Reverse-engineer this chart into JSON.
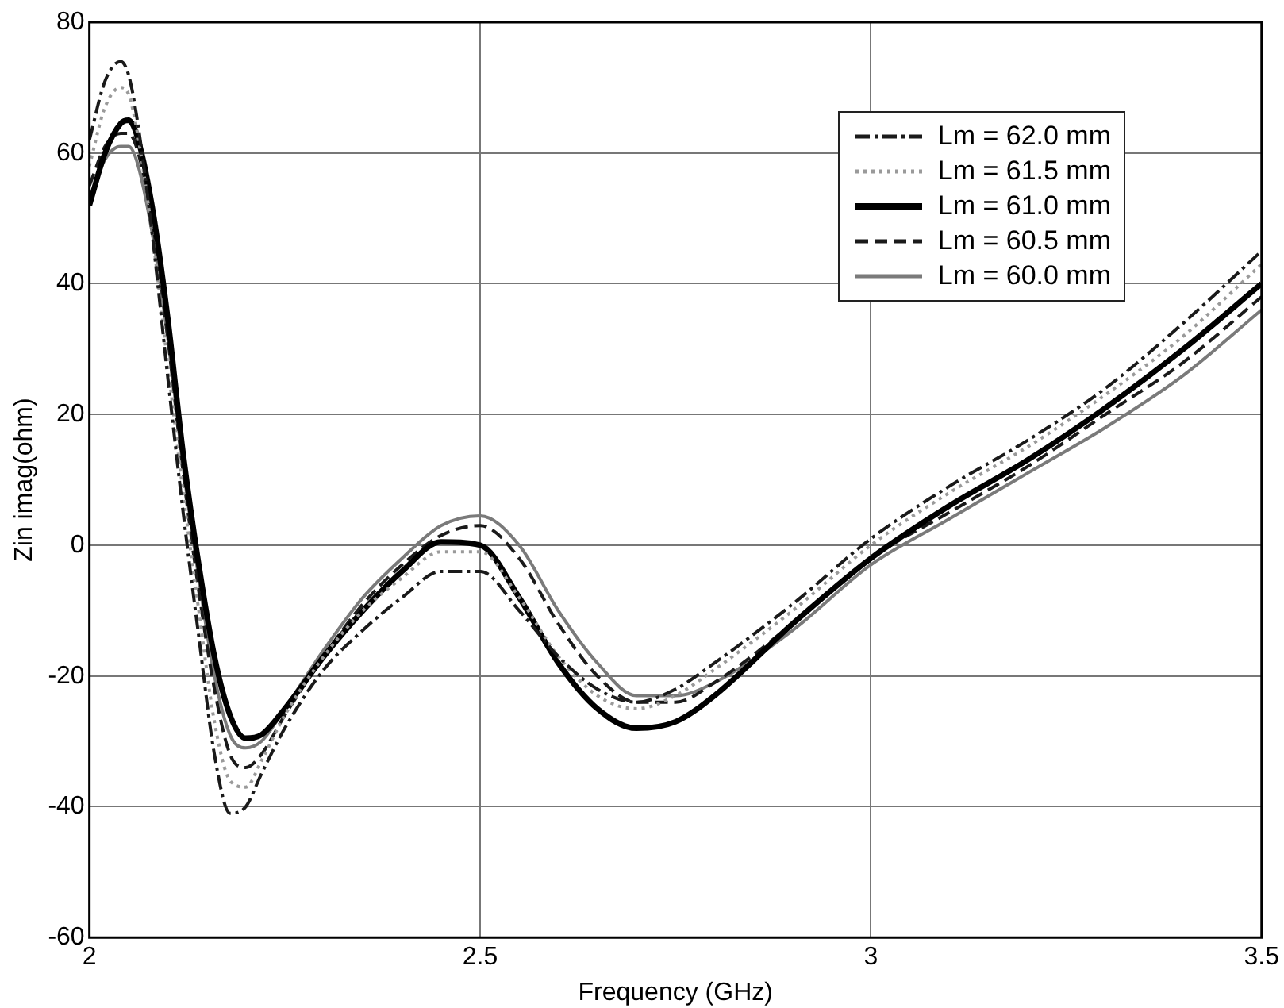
{
  "chart_data": {
    "type": "line",
    "xlabel": "Frequency (GHz)",
    "ylabel": "Zin imag(ohm)",
    "x": [
      2.0,
      2.02,
      2.04,
      2.05,
      2.06,
      2.08,
      2.1,
      2.12,
      2.14,
      2.16,
      2.18,
      2.2,
      2.22,
      2.25,
      2.3,
      2.35,
      2.4,
      2.45,
      2.5,
      2.55,
      2.6,
      2.65,
      2.7,
      2.75,
      2.8,
      2.9,
      3.0,
      3.1,
      3.2,
      3.3,
      3.4,
      3.5
    ],
    "xlim": [
      2,
      3.5
    ],
    "xticks": [
      2,
      2.5,
      3,
      3.5
    ],
    "ylim": [
      -60,
      80
    ],
    "yticks": [
      -60,
      -40,
      -20,
      0,
      20,
      40,
      60,
      80
    ],
    "grid": true,
    "legend": "top right",
    "marker": "none",
    "series": [
      {
        "name": "Lm = 62.0 mm",
        "color": "#1a1a1a",
        "line_style": "dashdot",
        "values": [
          62,
          71,
          74,
          72,
          66,
          48,
          26,
          5,
          -14,
          -32,
          -41,
          -40,
          -35,
          -28,
          -19,
          -13,
          -8,
          -4,
          -4,
          -10,
          -17,
          -22,
          -24,
          -22,
          -18,
          -9,
          1,
          9,
          16,
          24,
          34,
          45
        ]
      },
      {
        "name": "Lm = 61.5 mm",
        "color": "#9a9a9a",
        "line_style": "dotted",
        "values": [
          58,
          67,
          70,
          69,
          64,
          48,
          28,
          8,
          -10,
          -27,
          -36,
          -37,
          -33,
          -26,
          -17,
          -10,
          -5,
          -1,
          -1,
          -8,
          -17,
          -23,
          -25,
          -23,
          -19,
          -10,
          0,
          8,
          15,
          23,
          32,
          43
        ]
      },
      {
        "name": "Lm = 61.0 mm",
        "color": "#000000",
        "line_style": "solid",
        "values": [
          52,
          60,
          64.5,
          65,
          63,
          52,
          35,
          14,
          -3,
          -17,
          -26,
          -29.5,
          -29,
          -25,
          -17,
          -10,
          -4,
          0.5,
          0,
          -8,
          -18,
          -25,
          -28,
          -27,
          -23,
          -12,
          -2,
          6,
          13,
          21,
          30,
          40
        ]
      },
      {
        "name": "Lm = 60.5 mm",
        "color": "#1a1a1a",
        "line_style": "dashed",
        "values": [
          55,
          61,
          63,
          63,
          61,
          50,
          32,
          11,
          -7,
          -22,
          -32,
          -34,
          -32,
          -26,
          -17,
          -9,
          -3,
          1.5,
          3,
          -2,
          -12,
          -20,
          -24,
          -24,
          -21,
          -12,
          -2,
          5,
          12,
          20,
          28,
          38
        ]
      },
      {
        "name": "Lm = 60.0 mm",
        "color": "#7a7a7a",
        "line_style": "solid",
        "values": [
          53,
          59,
          61,
          61,
          59,
          48,
          32,
          12,
          -5,
          -20,
          -29,
          -31,
          -30,
          -25,
          -16,
          -8,
          -2,
          3,
          4.5,
          0,
          -10,
          -18,
          -23,
          -23,
          -21,
          -13,
          -3,
          4,
          11,
          18,
          26,
          36
        ]
      }
    ]
  }
}
